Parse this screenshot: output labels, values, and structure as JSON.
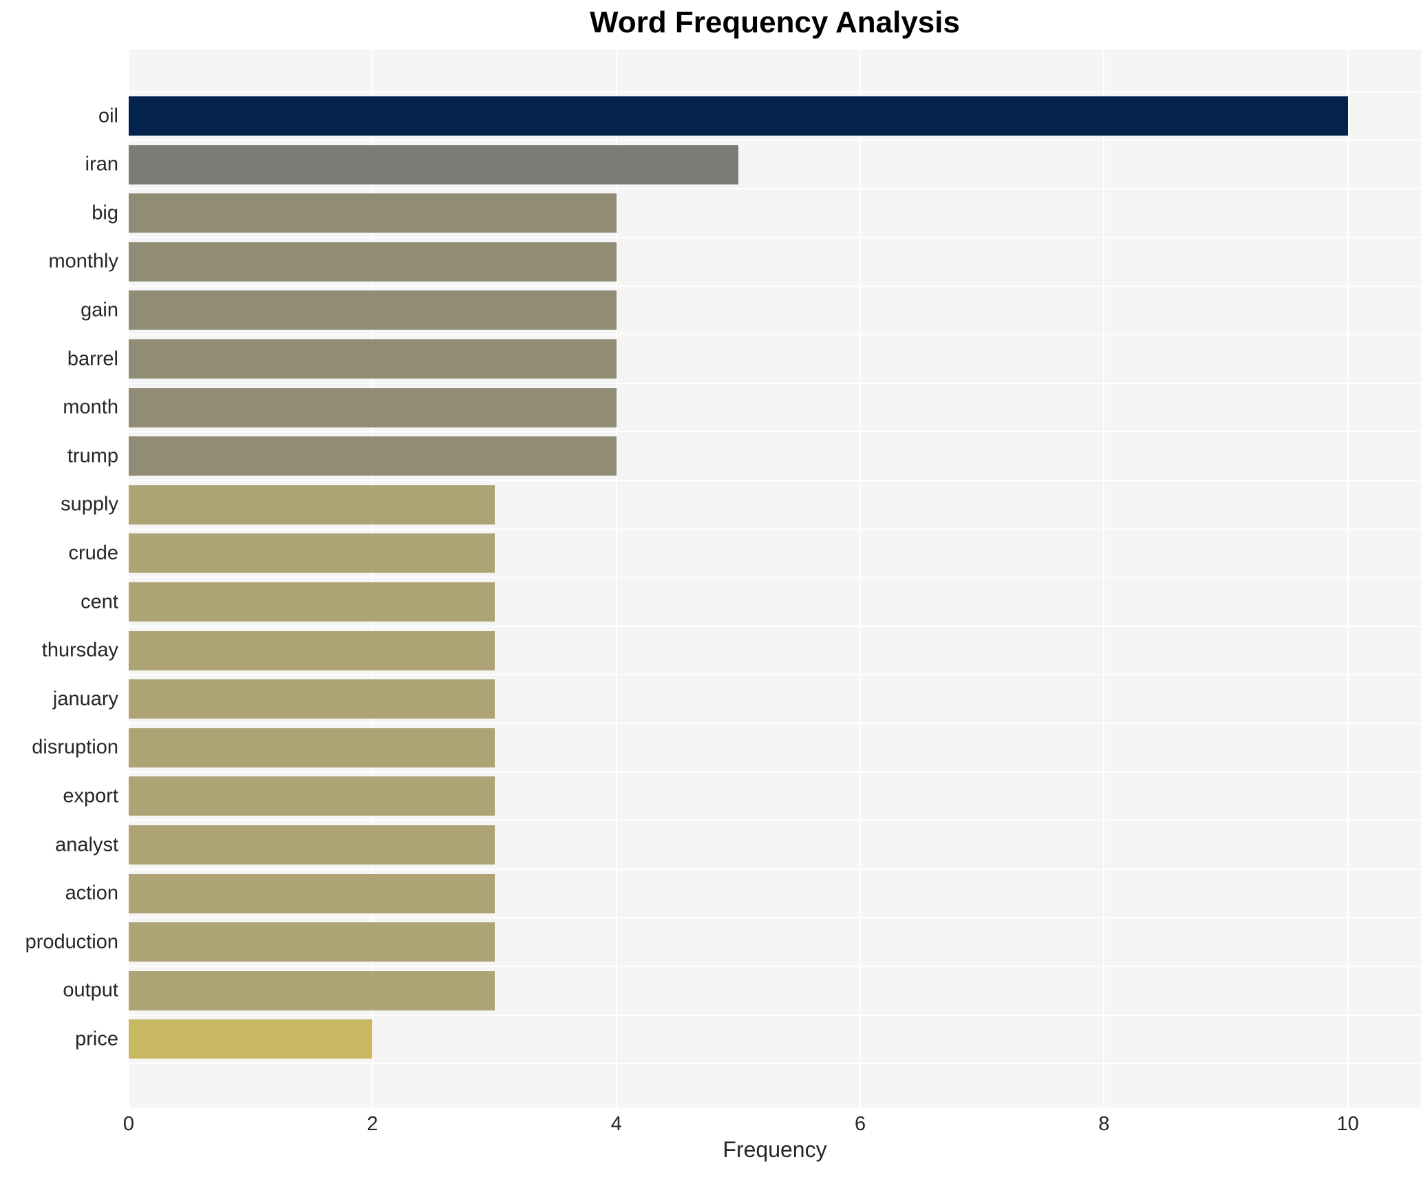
{
  "chart_data": {
    "type": "bar",
    "orientation": "horizontal",
    "title": "Word Frequency Analysis",
    "xlabel": "Frequency",
    "ylabel": "",
    "categories": [
      "oil",
      "iran",
      "big",
      "monthly",
      "gain",
      "barrel",
      "month",
      "trump",
      "supply",
      "crude",
      "cent",
      "thursday",
      "january",
      "disruption",
      "export",
      "analyst",
      "action",
      "production",
      "output",
      "price"
    ],
    "values": [
      10,
      5,
      4,
      4,
      4,
      4,
      4,
      4,
      3,
      3,
      3,
      3,
      3,
      3,
      3,
      3,
      3,
      3,
      3,
      2
    ],
    "bar_colors": [
      "#03224c",
      "#7c7b77",
      "#918d74",
      "#918d74",
      "#918d74",
      "#918d74",
      "#918d74",
      "#918d74",
      "#ada374",
      "#ada374",
      "#ada374",
      "#ada374",
      "#ada374",
      "#ada374",
      "#ada374",
      "#ada374",
      "#ada374",
      "#ada374",
      "#ada374",
      "#c8b863"
    ],
    "xticks": [
      0,
      2,
      4,
      6,
      8,
      10
    ],
    "xlim": [
      0,
      10.6
    ],
    "grid": true,
    "legend": "none",
    "plot_background": "#f5f5f6",
    "grid_color": "#ffffff",
    "text_color": "#262626",
    "title_color": "#000000"
  }
}
